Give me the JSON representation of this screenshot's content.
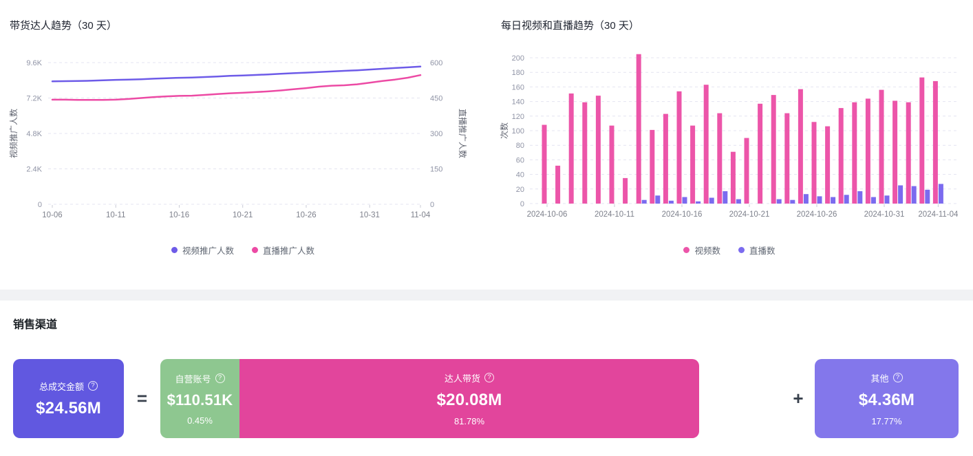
{
  "chart_data": [
    {
      "type": "line",
      "title": "带货达人趋势（30 天）",
      "x": [
        "10-06",
        "10-07",
        "10-08",
        "10-09",
        "10-10",
        "10-11",
        "10-12",
        "10-13",
        "10-14",
        "10-15",
        "10-16",
        "10-17",
        "10-18",
        "10-19",
        "10-20",
        "10-21",
        "10-22",
        "10-23",
        "10-24",
        "10-25",
        "10-26",
        "10-27",
        "10-28",
        "10-29",
        "10-30",
        "10-31",
        "11-01",
        "11-02",
        "11-03",
        "11-04"
      ],
      "x_tick_labels": [
        "10-06",
        "10-11",
        "10-16",
        "10-21",
        "10-26",
        "10-31",
        "11-04"
      ],
      "left_axis": {
        "label": "视频推广人数",
        "ticks": [
          "0",
          "2.4K",
          "4.8K",
          "7.2K",
          "9.6K"
        ],
        "max": 9600
      },
      "right_axis": {
        "label": "直播推广人数",
        "ticks": [
          "0",
          "150",
          "300",
          "450",
          "600"
        ],
        "max": 600
      },
      "grid": "dashed-horizontal",
      "legend_position": "bottom",
      "series": [
        {
          "name": "视频推广人数",
          "axis": "left",
          "color": "#6D5BE8",
          "values": [
            8330,
            8340,
            8350,
            8370,
            8400,
            8430,
            8450,
            8470,
            8510,
            8540,
            8570,
            8590,
            8620,
            8660,
            8700,
            8730,
            8760,
            8800,
            8840,
            8880,
            8920,
            8960,
            9000,
            9040,
            9080,
            9130,
            9180,
            9230,
            9280,
            9330
          ]
        },
        {
          "name": "直播推广人数",
          "axis": "right",
          "color": "#EC4AA4",
          "values": [
            443,
            443,
            442,
            442,
            442,
            443,
            446,
            450,
            454,
            457,
            459,
            460,
            463,
            467,
            470,
            472,
            475,
            478,
            482,
            487,
            492,
            498,
            502,
            504,
            508,
            515,
            522,
            528,
            536,
            547
          ]
        }
      ]
    },
    {
      "type": "bar",
      "title": "每日视频和直播趋势（30 天）",
      "x": [
        "2024-10-06",
        "2024-10-07",
        "2024-10-08",
        "2024-10-09",
        "2024-10-10",
        "2024-10-11",
        "2024-10-12",
        "2024-10-13",
        "2024-10-14",
        "2024-10-15",
        "2024-10-16",
        "2024-10-17",
        "2024-10-18",
        "2024-10-19",
        "2024-10-20",
        "2024-10-21",
        "2024-10-22",
        "2024-10-23",
        "2024-10-24",
        "2024-10-25",
        "2024-10-26",
        "2024-10-27",
        "2024-10-28",
        "2024-10-29",
        "2024-10-30",
        "2024-10-31",
        "2024-11-01",
        "2024-11-02",
        "2024-11-03",
        "2024-11-04"
      ],
      "x_tick_labels": [
        "2024-10-06",
        "2024-10-11",
        "2024-10-16",
        "2024-10-21",
        "2024-10-26",
        "2024-10-31",
        "2024-11-04"
      ],
      "ylabel": "次数",
      "ylim": [
        0,
        200
      ],
      "ytick_step": 20,
      "grid": "dashed-horizontal",
      "legend_position": "bottom",
      "series": [
        {
          "name": "视频数",
          "color": "#EC55A9",
          "values": [
            108,
            52,
            151,
            139,
            148,
            107,
            35,
            205,
            101,
            123,
            154,
            107,
            163,
            124,
            71,
            90,
            137,
            149,
            124,
            157,
            112,
            106,
            131,
            139,
            144,
            156,
            141,
            139,
            173,
            168
          ]
        },
        {
          "name": "直播数",
          "color": "#7B6BEF",
          "values": [
            0,
            0,
            0,
            0,
            0,
            0,
            0,
            5,
            11,
            4,
            9,
            3,
            8,
            17,
            6,
            0,
            0,
            6,
            5,
            13,
            10,
            9,
            12,
            17,
            9,
            11,
            25,
            24,
            19,
            27
          ]
        }
      ]
    }
  ],
  "chart_style": {
    "grid_color": "#E4E4F0",
    "tick_text_color": "#9094A6",
    "x_label_color": "#7E818C",
    "axis_title_color": "#606470",
    "tick_mark_color": "#C9CBD6"
  },
  "sales": {
    "heading": "销售渠道",
    "equals": "=",
    "plus": "+",
    "help_icon": "?",
    "total": {
      "label": "总成交金额",
      "value": "$24.56M",
      "color": "#6158E0"
    },
    "channels": [
      {
        "label": "自营账号",
        "value": "$110.51K",
        "percent": "0.45%",
        "color": "#8EC790"
      },
      {
        "label": "达人带货",
        "value": "$20.08M",
        "percent": "81.78%",
        "color": "#E2459C"
      },
      {
        "label": "其他",
        "value": "$4.36M",
        "percent": "17.77%",
        "color": "#8377EB"
      }
    ]
  }
}
